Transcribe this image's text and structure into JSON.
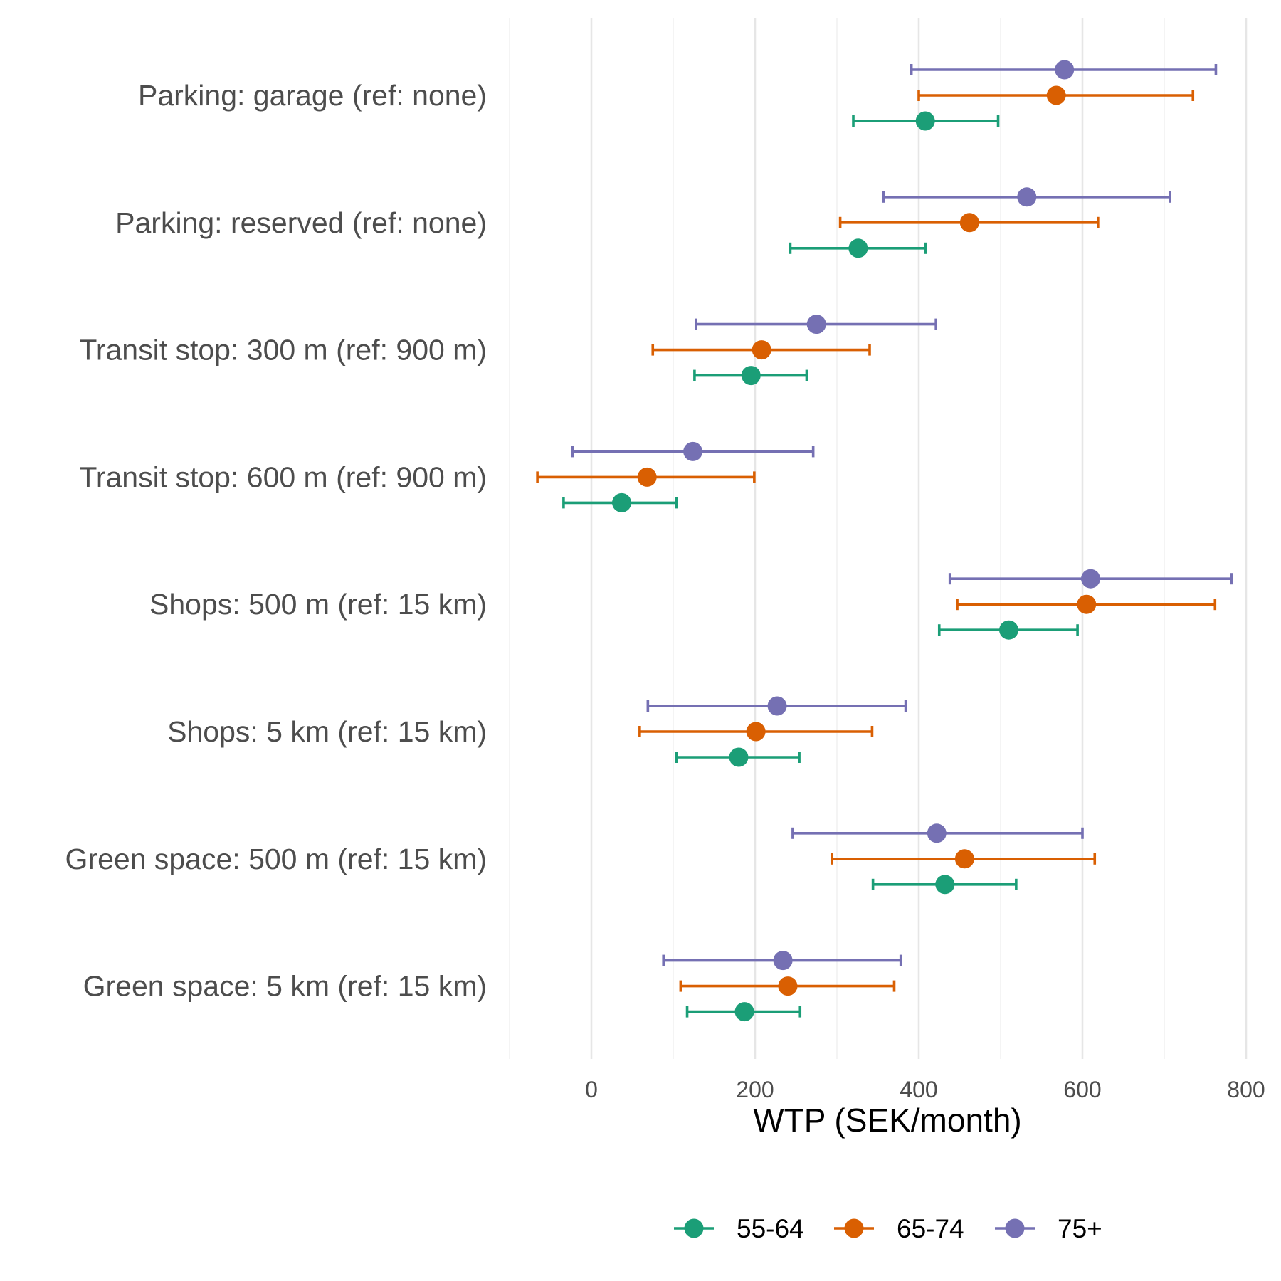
{
  "chart_data": {
    "type": "dot-errorbar",
    "xlabel": "WTP (SEK/month)",
    "xlim": [
      -100,
      800
    ],
    "xticks": [
      0,
      200,
      400,
      600,
      800
    ],
    "grid": true,
    "legend_position": "bottom",
    "categories": [
      "Parking: garage (ref: none)",
      "Parking: reserved (ref: none)",
      "Transit stop: 300 m (ref: 900 m)",
      "Transit stop: 600 m (ref: 900 m)",
      "Shops: 500 m (ref: 15 km)",
      "Shops: 5 km (ref: 15 km)",
      "Green space: 500 m (ref: 15 km)",
      "Green space: 5 km (ref: 15 km)"
    ],
    "series": [
      {
        "name": "55-64",
        "color": "#1b9e77",
        "values": [
          408,
          326,
          195,
          37,
          510,
          180,
          432,
          187
        ],
        "lower": [
          320,
          243,
          126,
          -34,
          425,
          104,
          344,
          117
        ],
        "upper": [
          497,
          408,
          263,
          104,
          594,
          254,
          519,
          255
        ]
      },
      {
        "name": "65-74",
        "color": "#d95f02",
        "values": [
          568,
          462,
          208,
          68,
          605,
          201,
          456,
          240
        ],
        "lower": [
          400,
          304,
          75,
          -66,
          447,
          59,
          294,
          109
        ],
        "upper": [
          735,
          619,
          340,
          199,
          762,
          343,
          615,
          370
        ]
      },
      {
        "name": "75+",
        "color": "#7570b3",
        "values": [
          578,
          532,
          275,
          124,
          610,
          227,
          422,
          234
        ],
        "lower": [
          391,
          357,
          128,
          -23,
          438,
          69,
          246,
          88
        ],
        "upper": [
          763,
          707,
          421,
          271,
          782,
          384,
          600,
          378
        ]
      }
    ]
  }
}
